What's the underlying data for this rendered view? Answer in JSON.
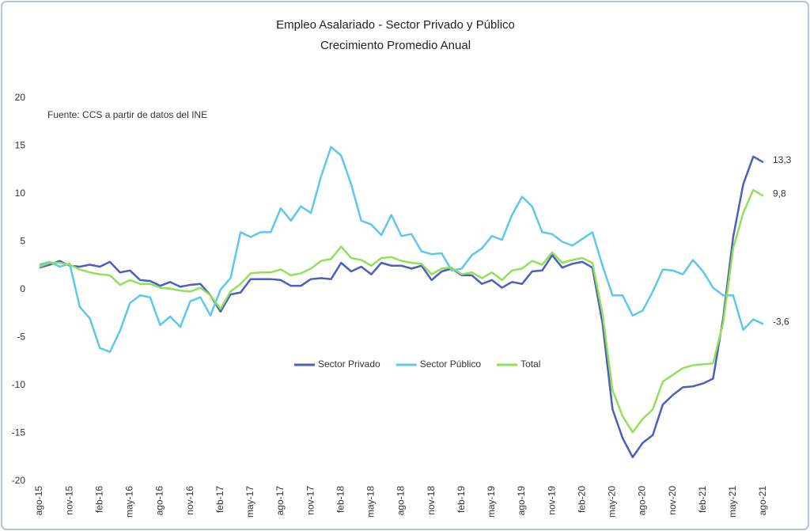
{
  "chart_data": {
    "type": "line",
    "title": "Empleo Asalariado - Sector Privado y Público",
    "subtitle": "Crecimiento Promedio Anual",
    "annotation": "Fuente: CCS a partir de datos del INE",
    "categories": [
      "ago-15",
      null,
      null,
      "nov-15",
      null,
      null,
      "feb-16",
      null,
      null,
      "may-16",
      null,
      null,
      "ago-16",
      null,
      null,
      "nov-16",
      null,
      null,
      "feb-17",
      null,
      null,
      "may-17",
      null,
      null,
      "ago-17",
      null,
      null,
      "nov-17",
      null,
      null,
      "feb-18",
      null,
      null,
      "may-18",
      null,
      null,
      "ago-18",
      null,
      null,
      "nov-18",
      null,
      null,
      "feb-19",
      null,
      null,
      "may-19",
      null,
      null,
      "ago-19",
      null,
      null,
      "nov-19",
      null,
      null,
      "feb-20",
      null,
      null,
      "may-20",
      null,
      null,
      "ago-20",
      null,
      null,
      "nov-20",
      null,
      null,
      "feb-21",
      null,
      null,
      "may-21",
      null,
      null,
      "ago-21"
    ],
    "series": [
      {
        "name": "Sector Privado",
        "color": "#4a5fbf",
        "values": [
          2.3,
          2.6,
          3.0,
          2.5,
          2.4,
          2.6,
          2.4,
          2.9,
          1.8,
          2.0,
          1.0,
          0.9,
          0.4,
          0.8,
          0.3,
          0.5,
          0.6,
          -0.6,
          -2.3,
          -0.5,
          -0.3,
          1.1,
          1.1,
          1.1,
          1.0,
          0.4,
          0.4,
          1.1,
          1.2,
          1.1,
          2.8,
          1.9,
          2.4,
          1.6,
          2.8,
          2.5,
          2.5,
          2.2,
          2.5,
          1.0,
          1.9,
          2.2,
          1.5,
          1.5,
          0.6,
          1.0,
          0.2,
          0.8,
          0.6,
          1.9,
          2.0,
          3.6,
          2.3,
          2.7,
          2.9,
          2.3,
          -3.5,
          -12.5,
          -15.5,
          -17.5,
          -16.0,
          -15.2,
          -12.0,
          -11.0,
          -10.2,
          -10.1,
          -9.8,
          -9.3,
          -3.0,
          5.5,
          11.0,
          13.9,
          13.3
        ],
        "value_labels": {
          "72": "13,3"
        }
      },
      {
        "name": "Sector Público",
        "color": "#5bc8ec",
        "values": [
          2.6,
          2.9,
          2.4,
          2.7,
          -1.8,
          -3.0,
          -6.1,
          -6.5,
          -4.3,
          -1.4,
          -0.6,
          -0.8,
          -3.7,
          -2.8,
          -3.9,
          -1.2,
          -0.8,
          -2.7,
          0,
          1.2,
          6.0,
          5.5,
          6.0,
          6.0,
          8.5,
          7.2,
          8.7,
          8.0,
          11.8,
          14.9,
          14.0,
          11.0,
          7.2,
          6.8,
          5.7,
          7.8,
          5.6,
          5.8,
          4.0,
          3.7,
          3.8,
          2.0,
          2.2,
          3.6,
          4.3,
          5.6,
          5.2,
          7.8,
          9.7,
          8.7,
          6.0,
          5.8,
          5.0,
          4.6,
          5.3,
          6.0,
          2.5,
          -0.6,
          -0.6,
          -2.7,
          -2.2,
          -0.2,
          2.1,
          2.0,
          1.6,
          3.1,
          1.9,
          0.2,
          -0.6,
          -0.6,
          -4.2,
          -3.1,
          -3.6
        ],
        "value_labels": {
          "72": "-3,6"
        }
      },
      {
        "name": "Total",
        "color": "#92e05a",
        "values": [
          2.4,
          2.8,
          2.8,
          2.6,
          2.1,
          1.8,
          1.6,
          1.5,
          0.5,
          1.0,
          0.6,
          0.6,
          0.2,
          0.1,
          -0.1,
          -0.2,
          0.2,
          -0.6,
          -2.0,
          -0.2,
          0.6,
          1.7,
          1.8,
          1.8,
          2.1,
          1.5,
          1.7,
          2.2,
          3.0,
          3.2,
          4.5,
          3.3,
          3.1,
          2.5,
          3.3,
          3.4,
          3.0,
          2.8,
          2.7,
          1.6,
          2.2,
          2.3,
          1.6,
          1.8,
          1.2,
          1.8,
          1.0,
          2.0,
          2.2,
          3.0,
          2.6,
          3.9,
          2.8,
          3.1,
          3.3,
          2.8,
          -2.5,
          -10.5,
          -13.2,
          -14.9,
          -13.5,
          -12.5,
          -9.6,
          -8.9,
          -8.2,
          -7.9,
          -7.8,
          -7.7,
          -3.5,
          4.3,
          8.0,
          10.4,
          9.8
        ],
        "value_labels": {
          "72": "9,8"
        }
      }
    ],
    "ylim": [
      -20,
      20
    ],
    "yticks": [
      -20,
      -15,
      -10,
      -5,
      0,
      5,
      10,
      15,
      20
    ],
    "grid": false,
    "legend": "center"
  }
}
